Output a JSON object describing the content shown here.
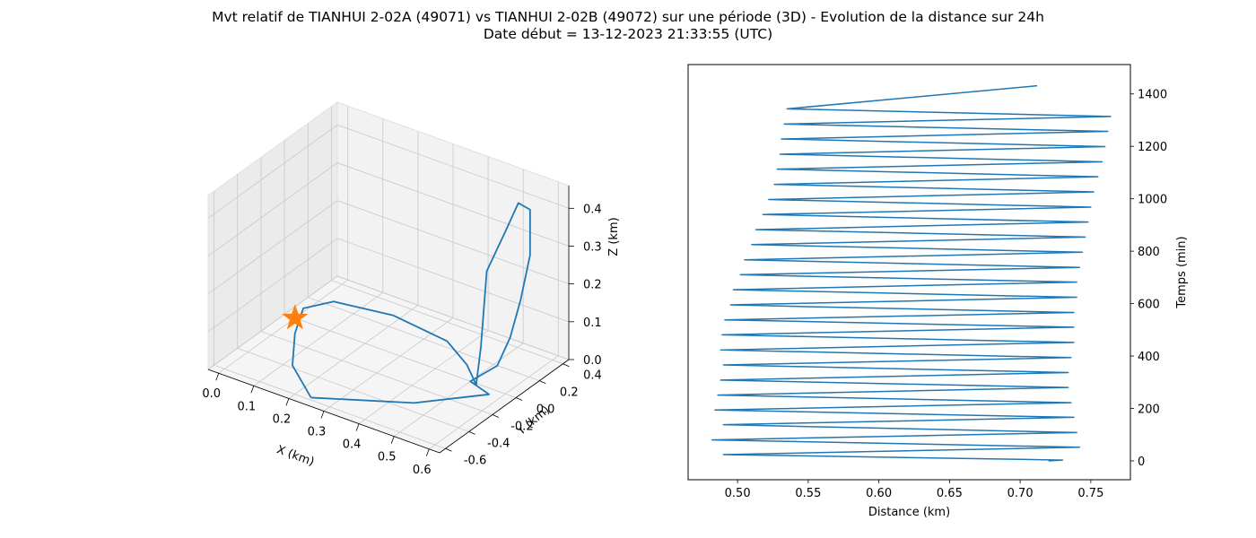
{
  "figure": {
    "title_line1": "Mvt relatif de TIANHUI 2-02A (49071) vs TIANHUI 2-02B (49072) sur une période (3D) - Evolution de la distance sur 24h",
    "title_line2": "Date début = 13-12-2023 21:33:55 (UTC)"
  },
  "colors": {
    "series": "#1f77b4",
    "marker": "#ff7f0e",
    "pane": "#f2f2f2",
    "grid": "#c8c8c8"
  },
  "chart_data": [
    {
      "type": "line",
      "projection": "3d",
      "xlabel": "X (km)",
      "ylabel": "Y (km)",
      "zlabel": "Z (km)",
      "xlim": [
        -0.03,
        0.63
      ],
      "ylim": [
        -0.65,
        0.45
      ],
      "zlim": [
        0.0,
        0.46
      ],
      "x_ticks": [
        "0.0",
        "0.1",
        "0.2",
        "0.3",
        "0.4",
        "0.5",
        "0.6"
      ],
      "y_ticks": [
        "-0.6",
        "-0.4",
        "-0.2",
        "0.0",
        "0.2",
        "0.4"
      ],
      "z_ticks": [
        "0.0",
        "0.1",
        "0.2",
        "0.3",
        "0.4"
      ],
      "grid": true,
      "marker": {
        "symbol": "star",
        "x": 0.0,
        "y": 0.0,
        "z": 0.0
      },
      "series": [
        {
          "points": [
            [
              0.24,
              -0.58,
              0.0
            ],
            [
              0.45,
              -0.33,
              0.0
            ],
            [
              0.57,
              -0.05,
              0.0
            ],
            [
              0.5,
              0.0,
              0.0
            ],
            [
              0.56,
              0.05,
              0.05
            ],
            [
              0.58,
              0.1,
              0.12
            ],
            [
              0.6,
              0.13,
              0.22
            ],
            [
              0.61,
              0.18,
              0.33
            ],
            [
              0.6,
              0.21,
              0.44
            ],
            [
              0.57,
              0.2,
              0.45
            ],
            [
              0.55,
              0.15,
              0.38
            ],
            [
              0.52,
              0.08,
              0.28
            ],
            [
              0.53,
              0.0,
              0.1
            ],
            [
              0.52,
              -0.01,
              0.0
            ],
            [
              0.45,
              0.12,
              0.0
            ],
            [
              0.35,
              0.25,
              0.0
            ],
            [
              0.18,
              0.3,
              0.0
            ],
            [
              0.03,
              0.24,
              0.0
            ],
            [
              -0.01,
              0.1,
              0.0
            ],
            [
              0.04,
              -0.12,
              0.0
            ],
            [
              0.12,
              -0.38,
              0.0
            ],
            [
              0.24,
              -0.58,
              0.0
            ]
          ]
        }
      ]
    },
    {
      "type": "line",
      "xlabel": "Distance (km)",
      "ylabel": "Temps (min)",
      "xlim": [
        0.465,
        0.778
      ],
      "ylim": [
        -72,
        1512
      ],
      "x_ticks": [
        0.5,
        0.55,
        0.6,
        0.65,
        0.7,
        0.75
      ],
      "x_tick_labels": [
        "0.50",
        "0.55",
        "0.60",
        "0.65",
        "0.70",
        "0.75"
      ],
      "y_ticks": [
        0,
        200,
        400,
        600,
        800,
        1000,
        1200,
        1400
      ],
      "y_tick_labels": [
        "0",
        "200",
        "400",
        "600",
        "800",
        "1000",
        "1200",
        "1400"
      ],
      "yaxis_side": "right",
      "series": [
        {
          "x": [
            0.72,
            0.73,
            0.49,
            0.742,
            0.482,
            0.74,
            0.49,
            0.738,
            0.484,
            0.736,
            0.486,
            0.734,
            0.488,
            0.734,
            0.49,
            0.736,
            0.488,
            0.738,
            0.489,
            0.738,
            0.491,
            0.738,
            0.495,
            0.74,
            0.497,
            0.74,
            0.502,
            0.742,
            0.505,
            0.744,
            0.51,
            0.746,
            0.513,
            0.748,
            0.518,
            0.75,
            0.522,
            0.752,
            0.526,
            0.755,
            0.528,
            0.758,
            0.53,
            0.76,
            0.531,
            0.762,
            0.533,
            0.764,
            0.535,
            0.712
          ],
          "y": [
            0,
            3,
            24,
            52,
            80,
            108,
            138,
            166,
            194,
            222,
            251,
            280,
            308,
            337,
            366,
            394,
            423,
            452,
            481,
            510,
            538,
            566,
            595,
            624,
            653,
            682,
            710,
            738,
            767,
            796,
            825,
            854,
            882,
            911,
            940,
            968,
            997,
            1026,
            1055,
            1084,
            1113,
            1141,
            1170,
            1199,
            1228,
            1257,
            1285,
            1314,
            1343,
            1431
          ]
        }
      ]
    }
  ]
}
